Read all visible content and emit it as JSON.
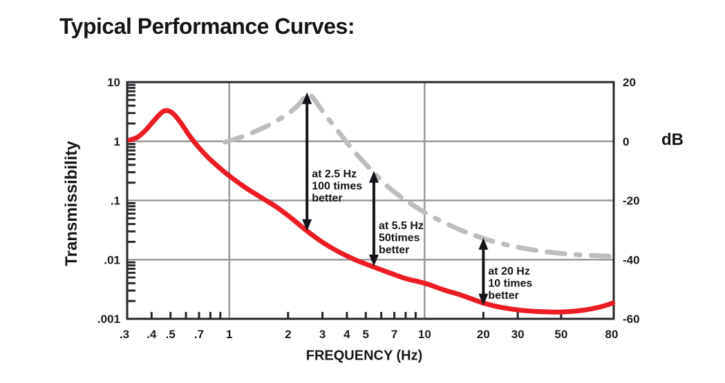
{
  "header": {
    "title": "Typical Performance Curves:"
  },
  "chart_data": {
    "type": "line",
    "title": "Typical Performance Curves:",
    "xlabel": "FREQUENCY (Hz)",
    "ylabel": "Transmissibility",
    "ylabel_right": "dB",
    "x_scale": "log",
    "y_scale": "log",
    "xlim": [
      0.3,
      93
    ],
    "ylim": [
      0.001,
      10
    ],
    "right_axis_db_lim": [
      -60,
      20
    ],
    "x_tick_values": [
      0.3,
      0.4,
      0.5,
      0.7,
      1,
      2,
      3,
      4,
      5,
      7,
      10,
      20,
      30,
      50,
      80
    ],
    "x_tick_labels": [
      ".3",
      ".4",
      ".5",
      ".7",
      "1",
      "2",
      "3",
      "4",
      "5",
      "7",
      "10",
      "20",
      "30",
      "50",
      "80"
    ],
    "x_minor_ticks": [
      0.4,
      0.5,
      0.6,
      0.7,
      0.8,
      0.9,
      2,
      3,
      4,
      5,
      6,
      7,
      8,
      9,
      20,
      30,
      50
    ],
    "y_tick_values": [
      10,
      1,
      0.1,
      0.01,
      0.001
    ],
    "y_tick_labels": [
      "10",
      "1",
      ".1",
      ".01",
      ".001"
    ],
    "right_tick_values": [
      10,
      1,
      0.1,
      0.01,
      0.001
    ],
    "right_tick_labels": [
      "20",
      "0",
      "-20",
      "-40",
      "-60"
    ],
    "x_gridlines": [
      1,
      10
    ],
    "y_gridlines": [
      1,
      0.1,
      0.01
    ],
    "grid": true,
    "legend": "none",
    "colors": {
      "red_curve": "#EB1C24",
      "gray_curve": "#BDBDBD",
      "gridline": "#999999",
      "axis": "#29262B",
      "text": "#1B1A1F",
      "annotation_text": "#15141B",
      "arrow": "#161419"
    },
    "series": [
      {
        "name": "isolated-system-red",
        "color": "#EB1C24",
        "style": "solid",
        "points": [
          [
            0.31,
            1.05
          ],
          [
            0.34,
            1.18
          ],
          [
            0.37,
            1.5
          ],
          [
            0.41,
            2.2
          ],
          [
            0.45,
            3.05
          ],
          [
            0.475,
            3.3
          ],
          [
            0.505,
            3.1
          ],
          [
            0.54,
            2.5
          ],
          [
            0.58,
            1.8
          ],
          [
            0.63,
            1.2
          ],
          [
            0.7,
            0.78
          ],
          [
            0.78,
            0.53
          ],
          [
            0.88,
            0.37
          ],
          [
            1.0,
            0.26
          ],
          [
            1.2,
            0.168
          ],
          [
            1.45,
            0.113
          ],
          [
            1.75,
            0.077
          ],
          [
            2.1,
            0.049
          ],
          [
            2.5,
            0.0305
          ],
          [
            3.0,
            0.0197
          ],
          [
            3.6,
            0.0138
          ],
          [
            4.4,
            0.01
          ],
          [
            5.5,
            0.0075
          ],
          [
            6.6,
            0.006
          ],
          [
            8.0,
            0.0048
          ],
          [
            10,
            0.004
          ],
          [
            12.5,
            0.0031
          ],
          [
            15.5,
            0.0025
          ],
          [
            20,
            0.00185
          ],
          [
            25,
            0.00155
          ],
          [
            32,
            0.00138
          ],
          [
            42,
            0.00131
          ],
          [
            52,
            0.00131
          ],
          [
            65,
            0.0014
          ],
          [
            80,
            0.0016
          ],
          [
            92,
            0.00185
          ]
        ]
      },
      {
        "name": "conventional-system-gray",
        "color": "#BDBDBD",
        "style": "dash-dot",
        "points": [
          [
            0.95,
            0.97
          ],
          [
            1.1,
            1.12
          ],
          [
            1.3,
            1.38
          ],
          [
            1.55,
            1.8
          ],
          [
            1.8,
            2.35
          ],
          [
            2.05,
            3.1
          ],
          [
            2.3,
            4.4
          ],
          [
            2.45,
            5.8
          ],
          [
            2.55,
            6.3
          ],
          [
            2.7,
            5.3
          ],
          [
            2.9,
            3.8
          ],
          [
            3.2,
            2.45
          ],
          [
            3.6,
            1.5
          ],
          [
            4.0,
            0.95
          ],
          [
            4.5,
            0.6
          ],
          [
            5.0,
            0.41
          ],
          [
            5.5,
            0.29
          ],
          [
            6.2,
            0.196
          ],
          [
            7.0,
            0.139
          ],
          [
            8.0,
            0.101
          ],
          [
            9.0,
            0.078
          ],
          [
            10,
            0.063
          ],
          [
            11.5,
            0.049
          ],
          [
            13.5,
            0.038
          ],
          [
            16,
            0.0297
          ],
          [
            19,
            0.0243
          ],
          [
            22,
            0.0207
          ],
          [
            26,
            0.018
          ],
          [
            31,
            0.0159
          ],
          [
            37,
            0.0144
          ],
          [
            45,
            0.0132
          ],
          [
            55,
            0.0124
          ],
          [
            67,
            0.0119
          ],
          [
            80,
            0.0116
          ],
          [
            92,
            0.0114
          ]
        ]
      }
    ],
    "annotations": [
      {
        "hz": 2.5,
        "lines": [
          "at 2.5 Hz",
          "100 times",
          "better"
        ],
        "arrow_top_T": 6.73,
        "arrow_bottom_T": 0.0305,
        "label_top_T": 0.36
      },
      {
        "hz": 5.5,
        "lines": [
          "at 5.5 Hz",
          "50times",
          "better"
        ],
        "arrow_top_T": 0.315,
        "arrow_bottom_T": 0.0077,
        "label_top_T": 0.048
      },
      {
        "hz": 20,
        "lines": [
          "at 20 Hz",
          "10 times",
          "better"
        ],
        "arrow_top_T": 0.0233,
        "arrow_bottom_T": 0.00168,
        "label_top_T": 0.00817
      }
    ]
  }
}
